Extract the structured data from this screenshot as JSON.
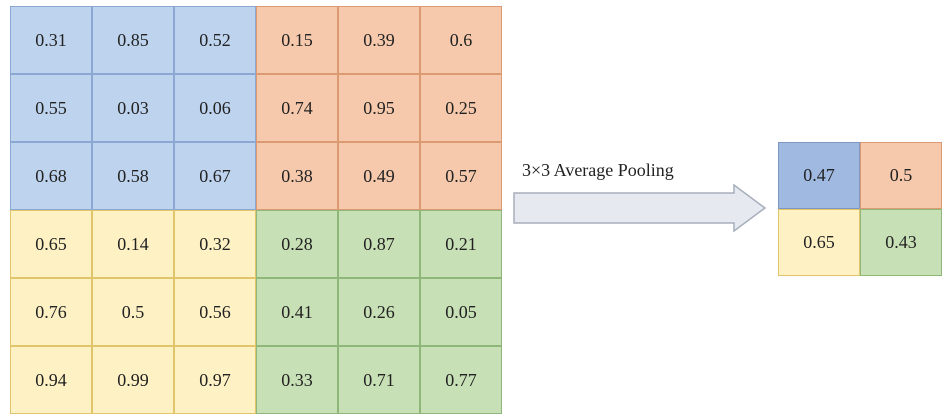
{
  "input_matrix": {
    "rows": [
      [
        "0.31",
        "0.85",
        "0.52",
        "0.15",
        "0.39",
        "0.6"
      ],
      [
        "0.55",
        "0.03",
        "0.06",
        "0.74",
        "0.95",
        "0.25"
      ],
      [
        "0.68",
        "0.58",
        "0.67",
        "0.38",
        "0.49",
        "0.57"
      ],
      [
        "0.65",
        "0.14",
        "0.32",
        "0.28",
        "0.87",
        "0.21"
      ],
      [
        "0.76",
        "0.5",
        "0.56",
        "0.41",
        "0.26",
        "0.05"
      ],
      [
        "0.94",
        "0.99",
        "0.97",
        "0.33",
        "0.71",
        "0.77"
      ]
    ]
  },
  "operation": {
    "label": "3×3 Average Pooling"
  },
  "output_matrix": {
    "rows": [
      [
        "0.47",
        "0.5"
      ],
      [
        "0.65",
        "0.43"
      ]
    ]
  },
  "colors": {
    "top_left": "#bed4ee",
    "top_right": "#f6c9ac",
    "bottom_left": "#fef2c5",
    "bottom_right": "#c8e0b6",
    "output_top_left": "#9fb9e1",
    "arrow_fill": "#e6eaf0",
    "arrow_stroke": "#a7afbb"
  }
}
